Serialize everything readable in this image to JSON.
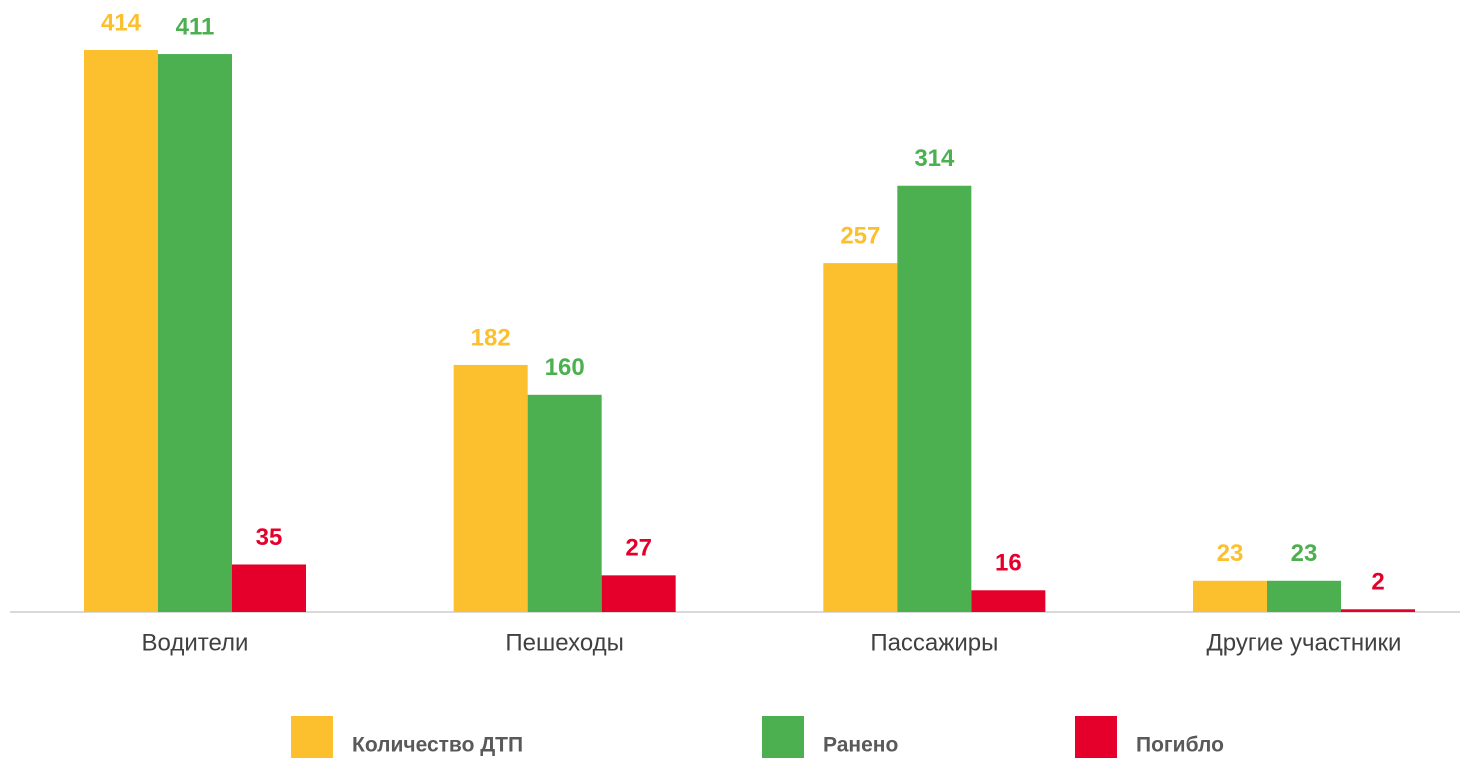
{
  "chart_data": {
    "type": "bar",
    "categories": [
      "Водители",
      "Пешеходы",
      "Пассажиры",
      "Другие участники"
    ],
    "series": [
      {
        "name": "Количество ДТП",
        "color": "#fcbf2d",
        "values": [
          414,
          182,
          257,
          23
        ]
      },
      {
        "name": "Ранено",
        "color": "#4caf50",
        "values": [
          411,
          160,
          314,
          23
        ]
      },
      {
        "name": "Погибло",
        "color": "#e4002b",
        "values": [
          35,
          27,
          16,
          2
        ]
      }
    ]
  }
}
